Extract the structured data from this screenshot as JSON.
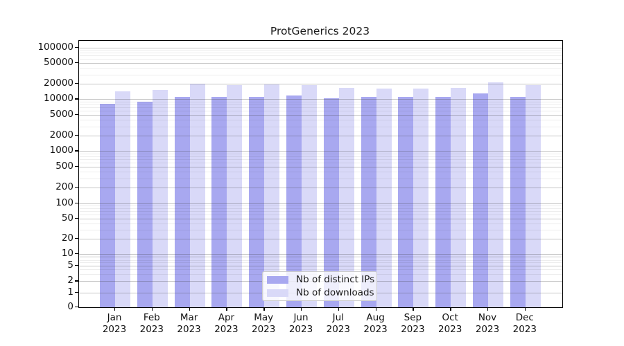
{
  "chart_data": {
    "type": "bar",
    "title": "ProtGenerics 2023",
    "categories": [
      "Jan",
      "Feb",
      "Mar",
      "Apr",
      "May",
      "Jun",
      "Jul",
      "Aug",
      "Sep",
      "Oct",
      "Nov",
      "Dec"
    ],
    "category_year": "2023",
    "series": [
      {
        "name": "Nb of distinct IPs",
        "color": "#a8a8f0",
        "values": [
          8200,
          8900,
          11200,
          11100,
          11100,
          11900,
          10400,
          11000,
          11000,
          11200,
          12800,
          11200
        ]
      },
      {
        "name": "Nb of downloads",
        "color": "#d9d9f8",
        "values": [
          14000,
          15200,
          20000,
          18600,
          19100,
          18500,
          16300,
          15800,
          16000,
          16500,
          21000,
          18500
        ]
      }
    ],
    "xlabel": "",
    "ylabel": "",
    "y_ticks": [
      0,
      1,
      2,
      5,
      10,
      20,
      50,
      100,
      200,
      500,
      1000,
      2000,
      5000,
      10000,
      20000,
      50000,
      100000
    ],
    "y_minor_ticks_per_decade": [
      3,
      4,
      6,
      7,
      8,
      9
    ],
    "yscale": "log-like with zero baseline",
    "ylim": [
      0,
      130000
    ],
    "grid": "horizontal major and minor gridlines drawn over bars",
    "legend_position": "lower center",
    "colors": {
      "spine": "#000000",
      "text": "#1a1a1a",
      "grid_major": "#b9b9b9",
      "grid_minor": "#ebebeb",
      "background": "#ffffff"
    }
  }
}
